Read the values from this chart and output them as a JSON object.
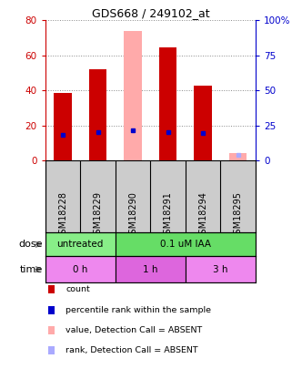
{
  "title": "GDS668 / 249102_at",
  "samples": [
    "GSM18228",
    "GSM18229",
    "GSM18290",
    "GSM18291",
    "GSM18294",
    "GSM18295"
  ],
  "bar_values": [
    38.5,
    52.0,
    0,
    64.5,
    42.5,
    0
  ],
  "absent_bar_values": [
    0,
    0,
    74.0,
    0,
    0,
    4.5
  ],
  "rank_values": [
    18.0,
    20.5,
    21.5,
    20.5,
    19.5,
    0
  ],
  "absent_rank_values": [
    0,
    0,
    0,
    0,
    0,
    4.0
  ],
  "ylim_left": [
    0,
    80
  ],
  "ylim_right": [
    0,
    100
  ],
  "yticks_left": [
    0,
    20,
    40,
    60,
    80
  ],
  "yticks_right": [
    0,
    25,
    50,
    75,
    100
  ],
  "ytick_labels_right": [
    "0",
    "25",
    "50",
    "75",
    "100%"
  ],
  "left_axis_color": "#cc0000",
  "right_axis_color": "#0000cc",
  "bar_color": "#cc0000",
  "absent_bar_color": "#ffaaaa",
  "rank_color": "#0000cc",
  "absent_rank_color": "#aaaaff",
  "dose_labels": [
    {
      "text": "untreated",
      "start": 0,
      "end": 2,
      "color": "#88ee88"
    },
    {
      "text": "0.1 uM IAA",
      "start": 2,
      "end": 6,
      "color": "#66dd66"
    }
  ],
  "time_labels": [
    {
      "text": "0 h",
      "start": 0,
      "end": 2,
      "color": "#ee88ee"
    },
    {
      "text": "1 h",
      "start": 2,
      "end": 4,
      "color": "#dd66dd"
    },
    {
      "text": "3 h",
      "start": 4,
      "end": 6,
      "color": "#ee88ee"
    }
  ],
  "legend_items": [
    {
      "color": "#cc0000",
      "label": "count"
    },
    {
      "color": "#0000cc",
      "label": "percentile rank within the sample"
    },
    {
      "color": "#ffaaaa",
      "label": "value, Detection Call = ABSENT"
    },
    {
      "color": "#aaaaff",
      "label": "rank, Detection Call = ABSENT"
    }
  ],
  "bar_width": 0.5,
  "label_bg": "#cccccc",
  "grid_color": "#888888"
}
